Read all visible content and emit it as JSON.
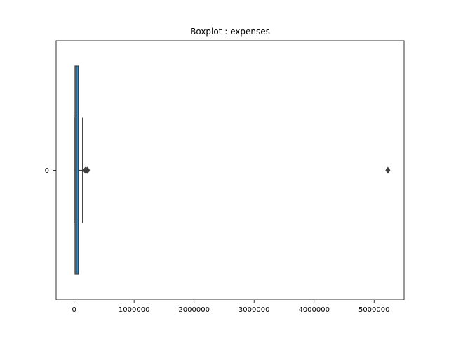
{
  "chart_data": {
    "type": "boxplot",
    "title": "Boxplot : expenses",
    "orientation": "horizontal",
    "xlim": [
      -300000,
      5500000
    ],
    "xticks": [
      0,
      1000000,
      2000000,
      3000000,
      4000000,
      5000000
    ],
    "xtick_labels": [
      "0",
      "1000000",
      "2000000",
      "3000000",
      "4000000",
      "5000000"
    ],
    "categories": [
      "0"
    ],
    "box": {
      "q1": 15000,
      "median": 38000,
      "q3": 70000,
      "whisker_low": 0,
      "whisker_high": 140000
    },
    "outliers": [
      185000,
      215000,
      225000,
      5230000
    ],
    "box_color": "#3a8bbf",
    "line_color": "#3f3f3f",
    "grid": false
  }
}
